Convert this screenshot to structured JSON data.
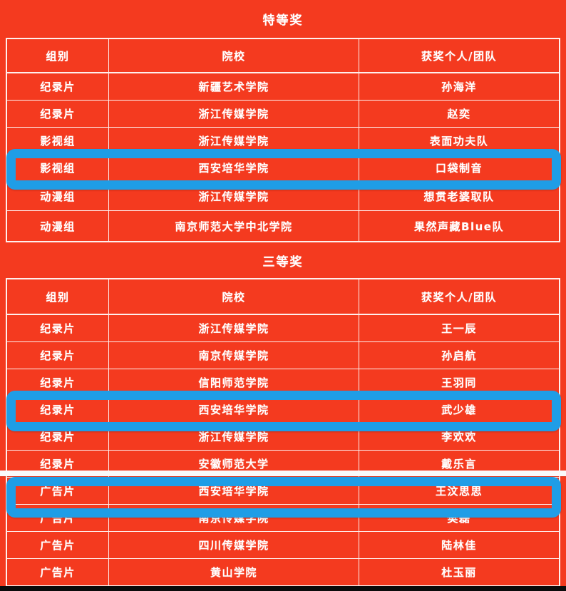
{
  "colors": {
    "background": "#f43a1f",
    "highlight_blue": "#1f9de6",
    "table_line": "#ffffff",
    "bottom_bar": "#0b0b0b"
  },
  "sections": [
    {
      "title": "特等奖",
      "columns": [
        "组别",
        "院校",
        "获奖个人/团队"
      ],
      "rows": [
        {
          "group": "纪录片",
          "school": "新疆艺术学院",
          "winner": "孙海洋",
          "highlighted": false
        },
        {
          "group": "纪录片",
          "school": "浙江传媒学院",
          "winner": "赵奕",
          "highlighted": false
        },
        {
          "group": "影视组",
          "school": "浙江传媒学院",
          "winner": "表面功夫队",
          "highlighted": false
        },
        {
          "group": "影视组",
          "school": "西安培华学院",
          "winner": "口袋制音",
          "highlighted": true
        },
        {
          "group": "动漫组",
          "school": "浙江传媒学院",
          "winner": "想贯老婆取队",
          "highlighted": false
        },
        {
          "group": "动漫组",
          "school": "南京师范大学中北学院",
          "winner": "果然声藏Blue队",
          "highlighted": false
        }
      ]
    },
    {
      "title": "三等奖",
      "columns": [
        "组别",
        "院校",
        "获奖个人/团队"
      ],
      "rows": [
        {
          "group": "纪录片",
          "school": "浙江传媒学院",
          "winner": "王一辰",
          "highlighted": false
        },
        {
          "group": "纪录片",
          "school": "南京传媒学院",
          "winner": "孙启航",
          "highlighted": false
        },
        {
          "group": "纪录片",
          "school": "信阳师范学院",
          "winner": "王羽同",
          "highlighted": false
        },
        {
          "group": "纪录片",
          "school": "西安培华学院",
          "winner": "武少雄",
          "highlighted": true
        },
        {
          "group": "纪录片",
          "school": "浙江传媒学院",
          "winner": "李欢欢",
          "highlighted": false
        },
        {
          "group": "纪录片",
          "school": "安徽师范大学",
          "winner": "戴乐言",
          "highlighted": false
        },
        {
          "group": "广告片",
          "school": "西安培华学院",
          "winner": "王汶思思",
          "highlighted": true
        },
        {
          "group": "广告片",
          "school": "南京传媒学院",
          "winner": "樊磊",
          "highlighted": false
        },
        {
          "group": "广告片",
          "school": "四川传媒学院",
          "winner": "陆林佳",
          "highlighted": false
        },
        {
          "group": "广告片",
          "school": "黄山学院",
          "winner": "杜玉丽",
          "highlighted": false
        }
      ]
    }
  ]
}
